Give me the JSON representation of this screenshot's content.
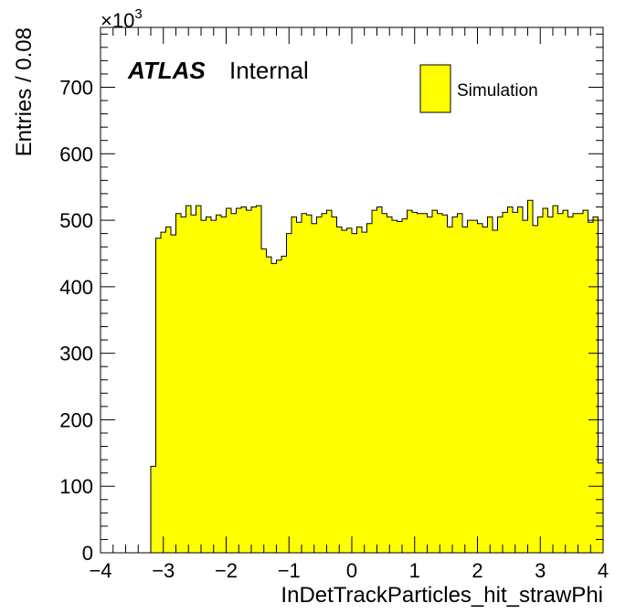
{
  "chart_data": {
    "type": "histogram",
    "xlabel": "InDetTrackParticles_hit_strawPhi",
    "ylabel": "Entries / 0.08",
    "xlim": [
      -4,
      4
    ],
    "ylim": [
      0,
      790
    ],
    "y_multiplier": "×10",
    "y_multiplier_exp": "3",
    "x_ticks": [
      -4,
      -3,
      -2,
      -1,
      0,
      1,
      2,
      3,
      4
    ],
    "x_tick_labels": [
      "−4",
      "−3",
      "−2",
      "−1",
      "0",
      "1",
      "2",
      "3",
      "4"
    ],
    "y_ticks": [
      0,
      100,
      200,
      300,
      400,
      500,
      600,
      700
    ],
    "y_tick_labels": [
      "0",
      "100",
      "200",
      "300",
      "400",
      "500",
      "600",
      "700"
    ],
    "bin_start": -3.2,
    "bin_width": 0.08,
    "values": [
      130,
      473,
      482,
      490,
      478,
      510,
      505,
      522,
      508,
      522,
      500,
      505,
      500,
      508,
      505,
      518,
      510,
      518,
      520,
      515,
      520,
      522,
      457,
      445,
      435,
      440,
      446,
      480,
      505,
      497,
      510,
      508,
      495,
      505,
      510,
      515,
      505,
      490,
      485,
      488,
      480,
      490,
      482,
      495,
      515,
      520,
      510,
      505,
      500,
      498,
      502,
      515,
      512,
      510,
      510,
      505,
      515,
      510,
      508,
      490,
      505,
      510,
      490,
      500,
      500,
      495,
      490,
      505,
      485,
      505,
      512,
      520,
      512,
      520,
      500,
      530,
      492,
      505,
      518,
      505,
      522,
      510,
      515,
      505,
      510,
      510,
      515,
      497,
      505,
      135
    ],
    "fill_color": "#ffff00",
    "line_color": "#000000",
    "grid": false,
    "legend_position": "top-right",
    "legend": [
      {
        "name": "Simulation",
        "color": "#ffff00"
      }
    ]
  },
  "label": {
    "atlas": "ATLAS",
    "internal": "Internal"
  }
}
